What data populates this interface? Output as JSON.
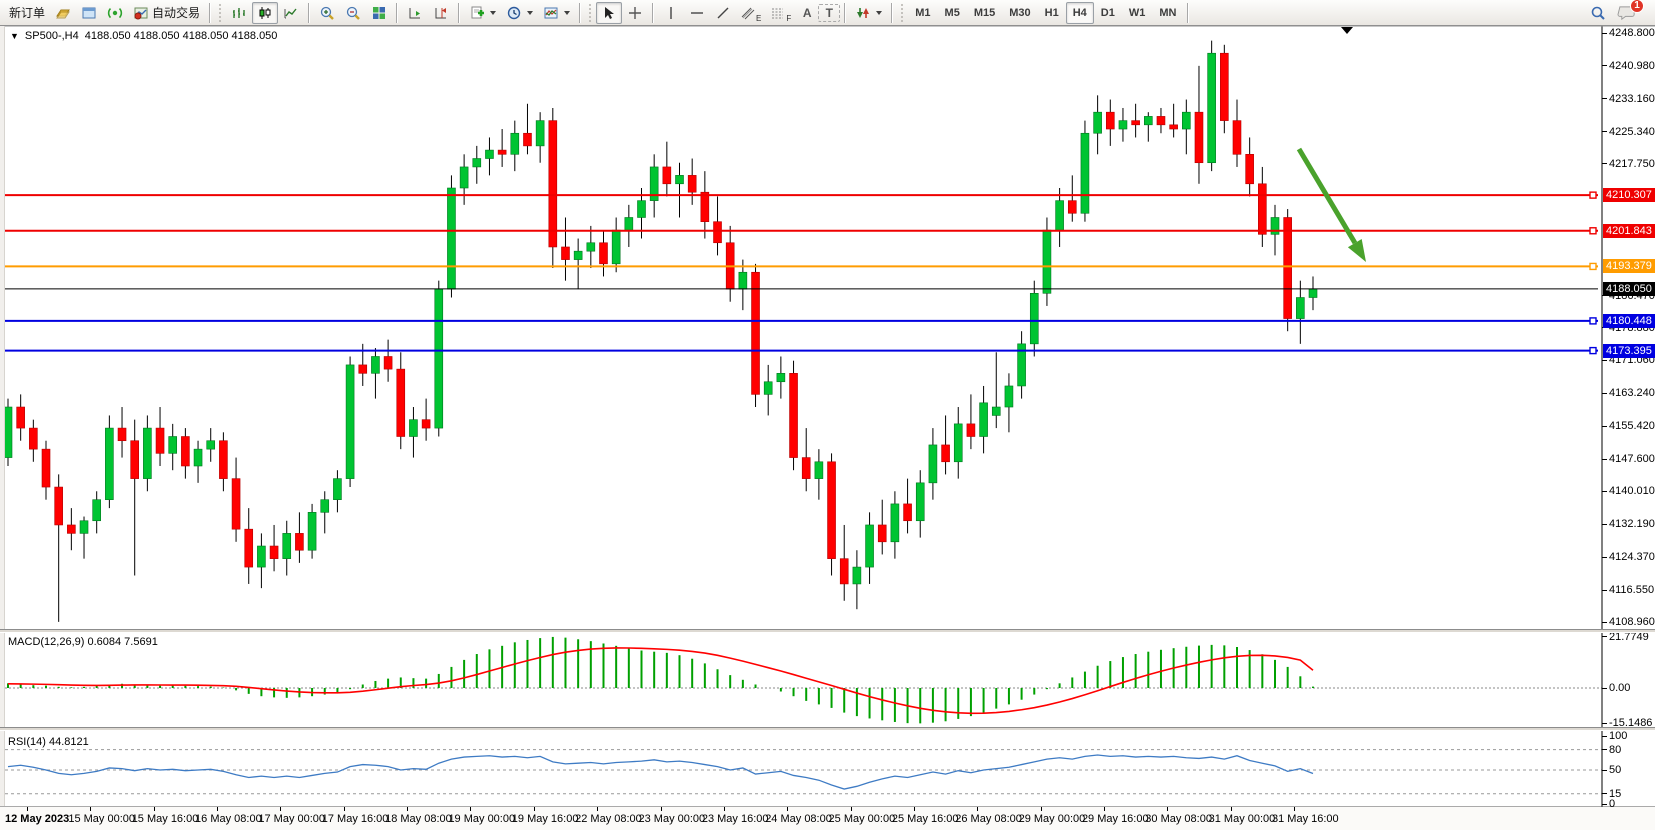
{
  "toolbar": {
    "new_order_label": "新订单",
    "auto_trading_label": "自动交易",
    "timeframes": [
      "M1",
      "M5",
      "M15",
      "M30",
      "H1",
      "H4",
      "D1",
      "W1",
      "MN"
    ],
    "active_timeframe": "H4",
    "notification_badge": "1",
    "tool_letters": {
      "text": "A",
      "label": "T",
      "channel": "E",
      "fibo": "F"
    }
  },
  "chart": {
    "collapse_arrow": "▼",
    "symbol_period": "SP500-,H4",
    "ohlc_text": "4188.050 4188.050 4188.050 4188.050",
    "price_axis_labels": [
      "4248.800",
      "4240.980",
      "4233.160",
      "4225.340",
      "4217.750",
      "4186.470",
      "4178.880",
      "4171.060",
      "4163.240",
      "4155.420",
      "4147.600",
      "4140.010",
      "4132.190",
      "4124.370",
      "4116.550",
      "4108.960"
    ],
    "levels": [
      {
        "label": "4210.307",
        "price": 4210.307,
        "color": "#ef0000",
        "width": 2,
        "marker": true
      },
      {
        "label": "4201.843",
        "price": 4201.843,
        "color": "#ef0000",
        "width": 2,
        "marker": true
      },
      {
        "label": "4193.379",
        "price": 4193.379,
        "color": "#ff9c00",
        "width": 2,
        "marker": true
      },
      {
        "label": "4188.050",
        "price": 4188.05,
        "color": "#000000",
        "width": 1,
        "marker": false
      },
      {
        "label": "4180.448",
        "price": 4180.448,
        "color": "#0000e0",
        "width": 2,
        "marker": true
      },
      {
        "label": "4173.395",
        "price": 4173.395,
        "color": "#0000e0",
        "width": 2,
        "marker": true
      }
    ],
    "annotation_arrow_color": "#4aa22c"
  },
  "macd_panel": {
    "label": "MACD(12,26,9) 0.6084 7.5691",
    "axis_labels": [
      {
        "text": "21.7749",
        "value": 21.7749
      },
      {
        "text": "0.00",
        "value": 0
      },
      {
        "text": "-15.1486",
        "value": -15.1486
      }
    ]
  },
  "rsi_panel": {
    "label": "RSI(14) 44.8121",
    "axis_labels": [
      {
        "text": "100",
        "value": 100
      },
      {
        "text": "80",
        "value": 80
      },
      {
        "text": "50",
        "value": 50
      },
      {
        "text": "15",
        "value": 15
      },
      {
        "text": "0",
        "value": 0
      }
    ],
    "dashed_levels": [
      80,
      50,
      15
    ]
  },
  "time_axis": [
    "12 May 2023",
    "15 May 00:00",
    "15 May 16:00",
    "16 May 08:00",
    "17 May 00:00",
    "17 May 16:00",
    "18 May 08:00",
    "19 May 00:00",
    "19 May 16:00",
    "22 May 08:00",
    "23 May 00:00",
    "23 May 16:00",
    "24 May 08:00",
    "25 May 00:00",
    "25 May 16:00",
    "26 May 08:00",
    "29 May 00:00",
    "29 May 16:00",
    "30 May 08:00",
    "31 May 00:00",
    "31 May 16:00"
  ],
  "colors": {
    "bull": "#00c432",
    "bear": "#ff0000",
    "wick": "#000000",
    "macd_hist": "#00a000",
    "macd_signal": "#ff0000",
    "rsi_line": "#3e7bc4",
    "grid_dash": "#999999"
  },
  "chart_data": {
    "type": "candlestick",
    "symbol": "SP500-",
    "timeframe": "H4",
    "price_range": [
      4108.96,
      4248.8
    ],
    "last_close": 4188.05,
    "candles_ohlc": [
      [
        4148,
        4162,
        4146,
        4160
      ],
      [
        4160,
        4163,
        4152,
        4155
      ],
      [
        4155,
        4157,
        4147,
        4150
      ],
      [
        4150,
        4152,
        4138,
        4141
      ],
      [
        4141,
        4144,
        4109,
        4132
      ],
      [
        4132,
        4136,
        4126,
        4130
      ],
      [
        4130,
        4134,
        4124,
        4133
      ],
      [
        4133,
        4140,
        4130,
        4138
      ],
      [
        4138,
        4158,
        4136,
        4155
      ],
      [
        4155,
        4160,
        4148,
        4152
      ],
      [
        4152,
        4157,
        4120,
        4143
      ],
      [
        4143,
        4158,
        4140,
        4155
      ],
      [
        4155,
        4160,
        4146,
        4149
      ],
      [
        4149,
        4156,
        4145,
        4153
      ],
      [
        4153,
        4155,
        4143,
        4146
      ],
      [
        4146,
        4152,
        4142,
        4150
      ],
      [
        4150,
        4155,
        4147,
        4152
      ],
      [
        4152,
        4154,
        4140,
        4143
      ],
      [
        4143,
        4148,
        4128,
        4131
      ],
      [
        4131,
        4136,
        4118,
        4122
      ],
      [
        4122,
        4130,
        4117,
        4127
      ],
      [
        4127,
        4132,
        4121,
        4124
      ],
      [
        4124,
        4133,
        4120,
        4130
      ],
      [
        4130,
        4135,
        4123,
        4126
      ],
      [
        4126,
        4137,
        4124,
        4135
      ],
      [
        4135,
        4140,
        4130,
        4138
      ],
      [
        4138,
        4145,
        4135,
        4143
      ],
      [
        4143,
        4172,
        4141,
        4170
      ],
      [
        4170,
        4175,
        4165,
        4168
      ],
      [
        4168,
        4174,
        4162,
        4172
      ],
      [
        4172,
        4176,
        4166,
        4169
      ],
      [
        4169,
        4173,
        4150,
        4153
      ],
      [
        4153,
        4160,
        4148,
        4157
      ],
      [
        4157,
        4162,
        4152,
        4155
      ],
      [
        4155,
        4190,
        4153,
        4188
      ],
      [
        4188,
        4215,
        4186,
        4212
      ],
      [
        4212,
        4220,
        4208,
        4217
      ],
      [
        4217,
        4222,
        4213,
        4219
      ],
      [
        4219,
        4224,
        4215,
        4221
      ],
      [
        4221,
        4226,
        4217,
        4220
      ],
      [
        4220,
        4228,
        4216,
        4225
      ],
      [
        4225,
        4232,
        4220,
        4222
      ],
      [
        4222,
        4230,
        4218,
        4228
      ],
      [
        4228,
        4231,
        4193,
        4198
      ],
      [
        4198,
        4205,
        4190,
        4195
      ],
      [
        4195,
        4200,
        4188,
        4197
      ],
      [
        4197,
        4203,
        4193,
        4199
      ],
      [
        4199,
        4202,
        4191,
        4194
      ],
      [
        4194,
        4205,
        4192,
        4202
      ],
      [
        4202,
        4208,
        4198,
        4205
      ],
      [
        4205,
        4212,
        4200,
        4209
      ],
      [
        4209,
        4220,
        4205,
        4217
      ],
      [
        4217,
        4223,
        4210,
        4213
      ],
      [
        4213,
        4218,
        4205,
        4215
      ],
      [
        4215,
        4219,
        4208,
        4211
      ],
      [
        4211,
        4216,
        4200,
        4204
      ],
      [
        4204,
        4210,
        4196,
        4199
      ],
      [
        4199,
        4203,
        4185,
        4188
      ],
      [
        4188,
        4195,
        4183,
        4192
      ],
      [
        4192,
        4194,
        4160,
        4163
      ],
      [
        4163,
        4170,
        4158,
        4166
      ],
      [
        4166,
        4172,
        4162,
        4168
      ],
      [
        4168,
        4171,
        4145,
        4148
      ],
      [
        4148,
        4155,
        4140,
        4143
      ],
      [
        4143,
        4150,
        4138,
        4147
      ],
      [
        4147,
        4149,
        4120,
        4124
      ],
      [
        4124,
        4132,
        4114,
        4118
      ],
      [
        4118,
        4126,
        4112,
        4122
      ],
      [
        4122,
        4135,
        4118,
        4132
      ],
      [
        4132,
        4138,
        4125,
        4128
      ],
      [
        4128,
        4140,
        4124,
        4137
      ],
      [
        4137,
        4143,
        4130,
        4133
      ],
      [
        4133,
        4145,
        4129,
        4142
      ],
      [
        4142,
        4155,
        4138,
        4151
      ],
      [
        4151,
        4158,
        4144,
        4147
      ],
      [
        4147,
        4160,
        4143,
        4156
      ],
      [
        4156,
        4163,
        4150,
        4153
      ],
      [
        4153,
        4165,
        4149,
        4161
      ],
      [
        4158,
        4173,
        4155,
        4160
      ],
      [
        4160,
        4168,
        4154,
        4165
      ],
      [
        4165,
        4178,
        4162,
        4175
      ],
      [
        4175,
        4190,
        4172,
        4187
      ],
      [
        4187,
        4205,
        4184,
        4202
      ],
      [
        4202,
        4212,
        4198,
        4209
      ],
      [
        4209,
        4215,
        4204,
        4206
      ],
      [
        4206,
        4228,
        4204,
        4225
      ],
      [
        4225,
        4234,
        4220,
        4230
      ],
      [
        4230,
        4233,
        4222,
        4226
      ],
      [
        4226,
        4231,
        4223,
        4228
      ],
      [
        4228,
        4232,
        4224,
        4227
      ],
      [
        4227,
        4230,
        4223,
        4229
      ],
      [
        4229,
        4231,
        4225,
        4227
      ],
      [
        4227,
        4232,
        4224,
        4226
      ],
      [
        4226,
        4233,
        4220,
        4230
      ],
      [
        4230,
        4241,
        4213,
        4218
      ],
      [
        4218,
        4247,
        4216,
        4244
      ],
      [
        4244,
        4246,
        4225,
        4228
      ],
      [
        4228,
        4233,
        4217,
        4220
      ],
      [
        4220,
        4224,
        4210,
        4213
      ],
      [
        4213,
        4217,
        4198,
        4201
      ],
      [
        4201,
        4208,
        4196,
        4205
      ],
      [
        4205,
        4207,
        4178,
        4181
      ],
      [
        4181,
        4190,
        4175,
        4186
      ],
      [
        4186,
        4191,
        4183,
        4188.05
      ]
    ],
    "macd": {
      "params": "12,26,9",
      "current_main": 0.6084,
      "current_signal": 7.5691,
      "range": [
        -15.1486,
        21.7749
      ],
      "histogram": [
        2,
        1.5,
        1.2,
        1,
        0.5,
        0.3,
        0.5,
        1,
        1.5,
        1.8,
        1.5,
        1.2,
        1,
        1.2,
        1,
        0.8,
        0.6,
        0.2,
        -1,
        -2.5,
        -3.5,
        -4,
        -4.2,
        -4,
        -3.5,
        -2.8,
        -2,
        -0.5,
        1.5,
        3,
        4,
        4.5,
        4.2,
        4,
        6,
        9,
        12,
        14.5,
        16.5,
        18,
        19.5,
        20.5,
        21.3,
        21.8,
        21.5,
        20.8,
        20,
        19,
        18,
        17,
        16,
        15.5,
        15,
        14,
        12.5,
        10.5,
        8,
        5.5,
        3.5,
        1.5,
        0,
        -1.5,
        -3.5,
        -5.5,
        -7,
        -8.5,
        -10.5,
        -12,
        -13,
        -13.8,
        -14.5,
        -15,
        -15.1,
        -14.8,
        -14.2,
        -13.2,
        -12,
        -10.5,
        -8.8,
        -7,
        -5,
        -2.8,
        -0.5,
        2,
        4.5,
        7,
        9.5,
        11.5,
        13.2,
        14.5,
        15.5,
        16.3,
        17,
        17.6,
        18.1,
        18.4,
        18.2,
        17.5,
        16.2,
        14.4,
        12,
        9,
        5,
        0.6
      ],
      "signal": [
        1.8,
        1.75,
        1.65,
        1.55,
        1.4,
        1.25,
        1.15,
        1.1,
        1.15,
        1.25,
        1.3,
        1.3,
        1.28,
        1.27,
        1.24,
        1.18,
        1.1,
        0.98,
        0.7,
        0.25,
        -0.3,
        -0.82,
        -1.3,
        -1.68,
        -1.94,
        -2.06,
        -2.05,
        -1.83,
        -1.36,
        -0.75,
        -0.08,
        0.56,
        1.07,
        1.48,
        2.11,
        3.07,
        4.32,
        5.74,
        7.25,
        8.75,
        10.25,
        11.68,
        13.03,
        14.26,
        15.27,
        16.04,
        16.6,
        16.93,
        17.08,
        17.07,
        16.92,
        16.72,
        16.48,
        16.13,
        15.62,
        14.91,
        13.94,
        12.76,
        11.47,
        10.07,
        8.66,
        7.24,
        5.73,
        4.16,
        2.6,
        1.05,
        -0.56,
        -2.16,
        -3.67,
        -5.09,
        -6.4,
        -7.61,
        -8.66,
        -9.52,
        -10.18,
        -10.6,
        -10.8,
        -10.75,
        -10.48,
        -9.99,
        -9.29,
        -8.39,
        -7.28,
        -5.98,
        -4.51,
        -2.9,
        -1.17,
        0.61,
        2.37,
        4.07,
        5.67,
        7.16,
        8.54,
        9.8,
        10.96,
        12,
        12.87,
        13.52,
        13.89,
        13.96,
        13.69,
        13.04,
        11.92,
        7.57
      ]
    },
    "rsi": {
      "period": 14,
      "current": 44.8121,
      "values": [
        55,
        57,
        54,
        50,
        45,
        43,
        45,
        48,
        53,
        52,
        49,
        52,
        50,
        51,
        49,
        50,
        51,
        48,
        43,
        39,
        41,
        39,
        41,
        39,
        42,
        45,
        47,
        55,
        58,
        57,
        55,
        50,
        52,
        51,
        60,
        66,
        69,
        70,
        71,
        69,
        70,
        68,
        70,
        62,
        59,
        60,
        61,
        59,
        61,
        62,
        63,
        65,
        62,
        63,
        61,
        58,
        55,
        50,
        53,
        44,
        46,
        48,
        42,
        39,
        35,
        28,
        22,
        26,
        32,
        37,
        41,
        39,
        43,
        47,
        44,
        49,
        46,
        50,
        52,
        54,
        58,
        62,
        66,
        68,
        66,
        70,
        72,
        70,
        71,
        69,
        70,
        69,
        70,
        68,
        67,
        69,
        66,
        71,
        64,
        60,
        56,
        48,
        52,
        44.81
      ]
    }
  }
}
